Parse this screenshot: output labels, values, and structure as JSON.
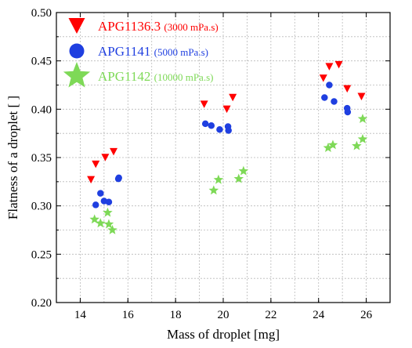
{
  "chart_data": {
    "type": "scatter",
    "xlabel": "Mass of droplet [mg]",
    "ylabel": "Flatness of a droplet [ ]",
    "xlim": [
      13,
      27
    ],
    "ylim": [
      0.2,
      0.5
    ],
    "x_ticks": [
      "14",
      "16",
      "18",
      "20",
      "22",
      "24",
      "26"
    ],
    "y_ticks": [
      "0.20",
      "0.25",
      "0.30",
      "0.35",
      "0.40",
      "0.45",
      "0.50"
    ],
    "x_tick_values": [
      14,
      16,
      18,
      20,
      22,
      24,
      26
    ],
    "y_tick_values": [
      0.2,
      0.25,
      0.3,
      0.35,
      0.4,
      0.45,
      0.5
    ],
    "x_minor_step": 1,
    "y_minor_step": 0.025,
    "grid": true,
    "legend_position": "top-left",
    "series": [
      {
        "name": "APG1136.3",
        "label_detail": "(3000 mPa.s)",
        "marker": "triangle-down",
        "color": "#ff0000",
        "points": [
          [
            14.45,
            0.327
          ],
          [
            14.65,
            0.343
          ],
          [
            15.05,
            0.35
          ],
          [
            15.4,
            0.356
          ],
          [
            19.2,
            0.405
          ],
          [
            20.15,
            0.4
          ],
          [
            20.4,
            0.412
          ],
          [
            24.2,
            0.432
          ],
          [
            24.45,
            0.444
          ],
          [
            24.85,
            0.446
          ],
          [
            25.2,
            0.421
          ],
          [
            25.8,
            0.413
          ]
        ]
      },
      {
        "name": "APG1141",
        "label_detail": "(5000 mPa.s)",
        "marker": "circle",
        "color": "#1f3fe0",
        "points": [
          [
            14.65,
            0.301
          ],
          [
            14.85,
            0.313
          ],
          [
            15.0,
            0.305
          ],
          [
            15.2,
            0.304
          ],
          [
            15.6,
            0.328
          ],
          [
            15.62,
            0.329
          ],
          [
            19.25,
            0.385
          ],
          [
            19.5,
            0.383
          ],
          [
            19.85,
            0.379
          ],
          [
            20.2,
            0.382
          ],
          [
            20.22,
            0.378
          ],
          [
            24.25,
            0.412
          ],
          [
            24.45,
            0.425
          ],
          [
            24.65,
            0.408
          ],
          [
            25.2,
            0.401
          ],
          [
            25.22,
            0.397
          ]
        ]
      },
      {
        "name": "APG1142",
        "label_detail": "(10000 mPa.s)",
        "marker": "star",
        "color": "#7ed957",
        "points": [
          [
            14.6,
            0.286
          ],
          [
            14.85,
            0.282
          ],
          [
            15.15,
            0.293
          ],
          [
            15.2,
            0.281
          ],
          [
            15.35,
            0.275
          ],
          [
            19.6,
            0.316
          ],
          [
            19.8,
            0.327
          ],
          [
            20.65,
            0.328
          ],
          [
            20.85,
            0.336
          ],
          [
            24.4,
            0.36
          ],
          [
            24.6,
            0.363
          ],
          [
            25.6,
            0.362
          ],
          [
            25.85,
            0.369
          ],
          [
            25.85,
            0.39
          ]
        ]
      }
    ]
  }
}
